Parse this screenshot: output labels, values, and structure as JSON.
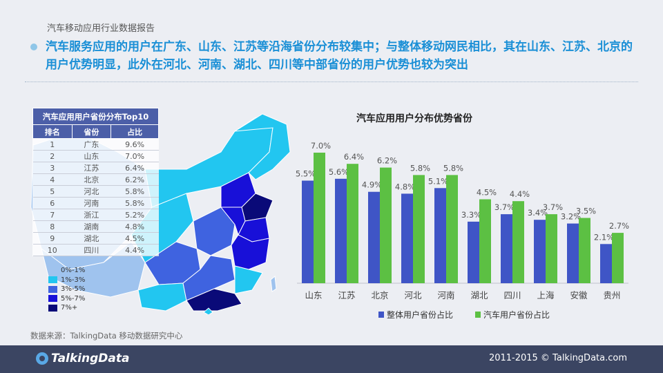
{
  "header": {
    "report_title": "汽车移动应用行业数据报告",
    "headline": "汽车服务应用的用户在广东、山东、江苏等沿海省份分布较集中；与整体移动网民相比，其在山东、江苏、北京的用户优势明显，此外在河北、河南、湖北、四川等中部省份的用户优势也较为突出"
  },
  "top10_table": {
    "caption": "汽车应用用户省份分布Top10",
    "columns": [
      "排名",
      "省份",
      "占比"
    ],
    "rows": [
      [
        "1",
        "广东",
        "9.6%"
      ],
      [
        "2",
        "山东",
        "7.0%"
      ],
      [
        "3",
        "江苏",
        "6.4%"
      ],
      [
        "4",
        "北京",
        "6.2%"
      ],
      [
        "5",
        "河北",
        "5.8%"
      ],
      [
        "6",
        "河南",
        "5.8%"
      ],
      [
        "7",
        "浙江",
        "5.2%"
      ],
      [
        "8",
        "湖南",
        "4.8%"
      ],
      [
        "9",
        "湖北",
        "4.5%"
      ],
      [
        "10",
        "四川",
        "4.4%"
      ]
    ]
  },
  "map_legend": [
    {
      "label": "0%-1%",
      "color": "#9fc3ee"
    },
    {
      "label": "1%-3%",
      "color": "#22c6f0"
    },
    {
      "label": "3%-5%",
      "color": "#3f63e0"
    },
    {
      "label": "5%-7%",
      "color": "#1810d8"
    },
    {
      "label": "7%+",
      "color": "#0a0a78"
    }
  ],
  "source": "数据来源：TalkingData 移动数据研究中心",
  "chart_data": {
    "type": "bar",
    "title": "汽车应用用户分布优势省份",
    "categories": [
      "山东",
      "江苏",
      "北京",
      "河北",
      "河南",
      "湖北",
      "四川",
      "上海",
      "安徽",
      "贵州"
    ],
    "series": [
      {
        "name": "整体用户省份占比",
        "color": "#3f55c6",
        "values": [
          5.5,
          5.6,
          4.9,
          4.8,
          5.1,
          3.3,
          3.7,
          3.4,
          3.2,
          2.1
        ]
      },
      {
        "name": "汽车用户省份占比",
        "color": "#5cc043",
        "values": [
          7.0,
          6.4,
          6.2,
          5.8,
          5.8,
          4.5,
          4.4,
          3.7,
          3.5,
          2.7
        ]
      }
    ],
    "labels": [
      [
        "5.5%",
        "5.6%",
        "4.9%",
        "4.8%",
        "5.1%",
        "3.3%",
        "3.7%",
        "3.4%",
        "3.2%",
        "2.1%"
      ],
      [
        "7.0%",
        "6.4%",
        "6.2%",
        "5.8%",
        "5.8%",
        "4.5%",
        "4.4%",
        "3.7%",
        "3.5%",
        "2.7%"
      ]
    ],
    "ylim": [
      0,
      8
    ],
    "grid": false,
    "legend_position": "bottom"
  },
  "footer": {
    "logo_text": "TalkingData",
    "copyright": "2011-2015 © TalkingData.com"
  }
}
